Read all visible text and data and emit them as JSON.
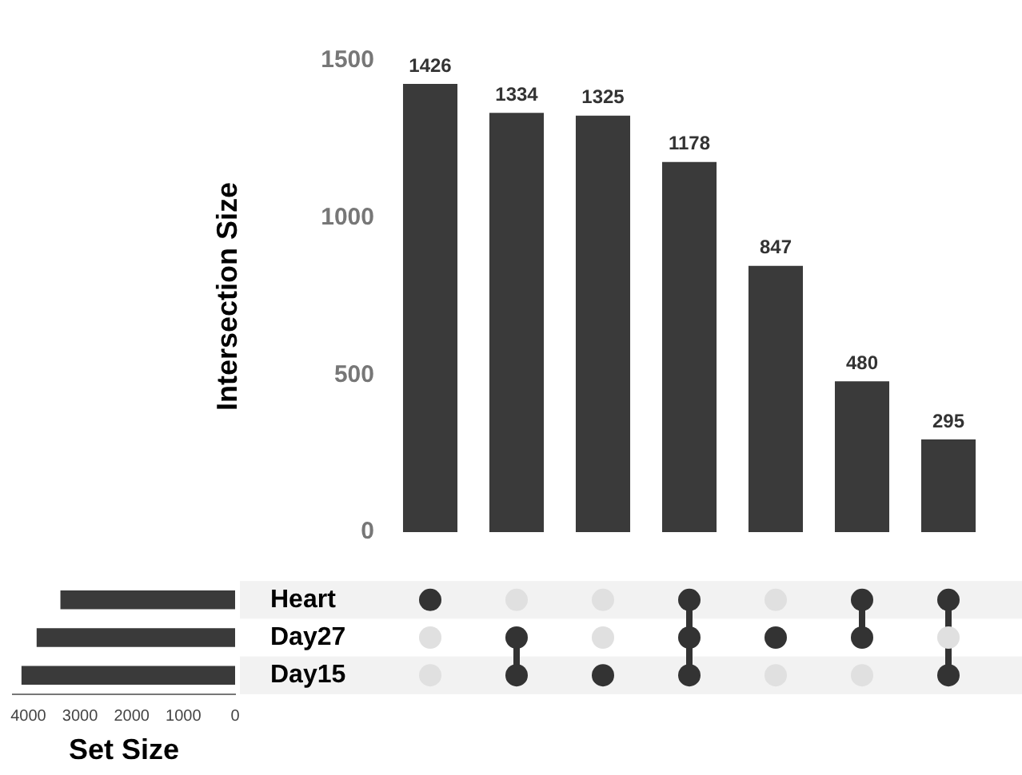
{
  "chart_data": [
    {
      "type": "bar",
      "categories": [
        null,
        null,
        null,
        null,
        null,
        null,
        null
      ],
      "values": [
        1426,
        1334,
        1325,
        1178,
        847,
        480,
        295
      ],
      "color": "#3a3a3a",
      "ylabel": "Intersection Size",
      "ylim": [
        0,
        1500
      ],
      "yticks": [
        0,
        500,
        1000,
        1500
      ],
      "data_labels": true,
      "tick_labels": "y"
    },
    {
      "type": "bar",
      "orientation": "horizontal",
      "categories": [
        "Heart",
        "Day27",
        "Day15"
      ],
      "values": [
        3379,
        3839,
        4132
      ],
      "color": "#3a3a3a",
      "xlabel": "Set Size",
      "xlim": [
        4300,
        0
      ],
      "xticks": [
        4000,
        3000,
        2000,
        1000,
        0
      ]
    }
  ]
}
